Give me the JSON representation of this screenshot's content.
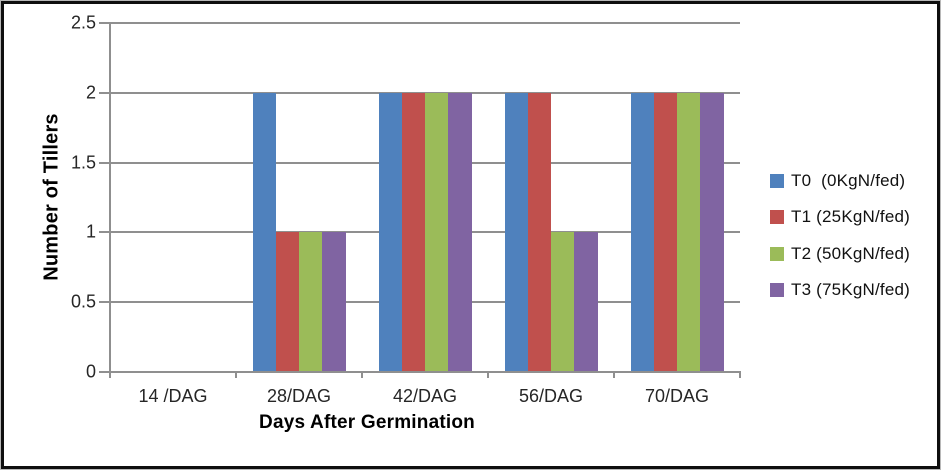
{
  "chart_data": {
    "type": "bar",
    "title": "",
    "xlabel": "Days After Germination",
    "ylabel": "Number of Tillers",
    "categories": [
      "14 /DAG",
      "28/DAG",
      "42/DAG",
      "56/DAG",
      "70/DAG"
    ],
    "series": [
      {
        "name": "T0  (0KgN/fed)",
        "color": "#4f81bd",
        "values": [
          0,
          2,
          2,
          2,
          2
        ]
      },
      {
        "name": "T1 (25KgN/fed)",
        "color": "#c0504d",
        "values": [
          0,
          1,
          2,
          2,
          2
        ]
      },
      {
        "name": "T2 (50KgN/fed)",
        "color": "#9bbb59",
        "values": [
          0,
          1,
          2,
          1,
          2
        ]
      },
      {
        "name": "T3 (75KgN/fed)",
        "color": "#8064a2",
        "values": [
          0,
          1,
          2,
          1,
          2
        ]
      }
    ],
    "ylim": [
      0,
      2.5
    ],
    "ytick_step": 0.5,
    "yticks": [
      "0",
      "0.5",
      "1",
      "1.5",
      "2",
      "2.5"
    ],
    "grid": true,
    "legend_position": "right"
  },
  "colors": {
    "gridline": "#8f8f8f",
    "axis": "#8f8f8f",
    "tick_text": "#262626",
    "title_text": "#000000",
    "frame": "#0f0f0f"
  }
}
